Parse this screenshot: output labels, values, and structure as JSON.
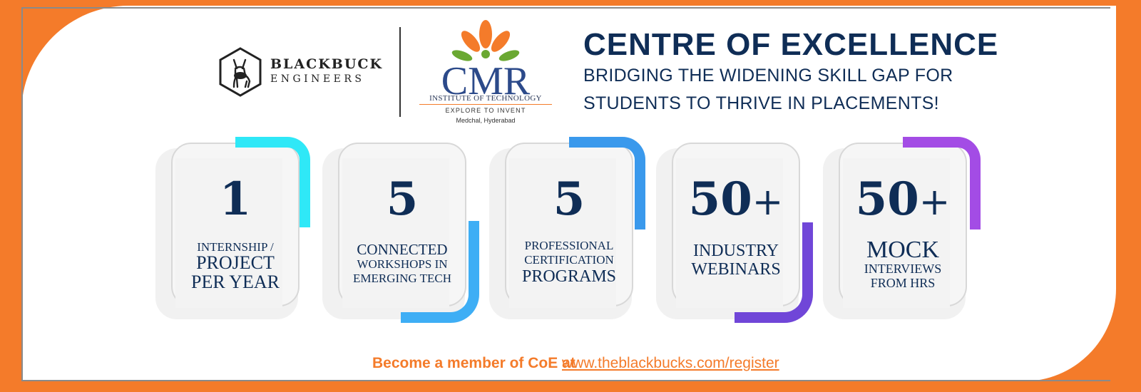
{
  "colors": {
    "orange": "#f47b2a",
    "navy": "#0f2d56",
    "cyan": "#2fe8f7",
    "sky_blue": "#3eaef5",
    "blue": "#3a99ec",
    "purple": "#7046d8",
    "violet": "#a34ce5"
  },
  "logos": {
    "blackbuck": {
      "name": "BLACKBUCK",
      "sub": "ENGINEERS",
      "icon": "blackbuck-hexagon-icon"
    },
    "cmr": {
      "name": "CMR",
      "institute": "INSTITUTE OF TECHNOLOGY",
      "tagline": "EXPLORE TO INVENT",
      "location": "Medchal, Hyderabad",
      "icon": "lotus-flower-icon"
    }
  },
  "header": {
    "title": "CENTRE OF EXCELLENCE",
    "subtitle_line1": "BRIDGING THE WIDENING SKILL GAP FOR",
    "subtitle_line2": "STUDENTS TO THRIVE IN PLACEMENTS!"
  },
  "stats": [
    {
      "value": "1",
      "plus": "",
      "label": [
        "INTERNSHIP /",
        "PROJECT",
        "PER YEAR"
      ],
      "accent_color": "#2fe8f7"
    },
    {
      "value": "5",
      "plus": "",
      "label": [
        "CONNECTED",
        "WORKSHOPS IN",
        "EMERGING TECH"
      ],
      "accent_color": "#3eaef5"
    },
    {
      "value": "5",
      "plus": "",
      "label": [
        "PROFESSIONAL",
        "CERTIFICATION",
        "PROGRAMS"
      ],
      "accent_color": "#3a99ec"
    },
    {
      "value": "50",
      "plus": "+",
      "label": [
        "INDUSTRY",
        "WEBINARS"
      ],
      "accent_color": "#7046d8"
    },
    {
      "value": "50",
      "plus": "+",
      "label": [
        "MOCK",
        "INTERVIEWS",
        "FROM HRS"
      ],
      "accent_color": "#a34ce5"
    }
  ],
  "footer": {
    "cta": "Become a member of CoE at",
    "link": "www.theblackbucks.com/register"
  }
}
